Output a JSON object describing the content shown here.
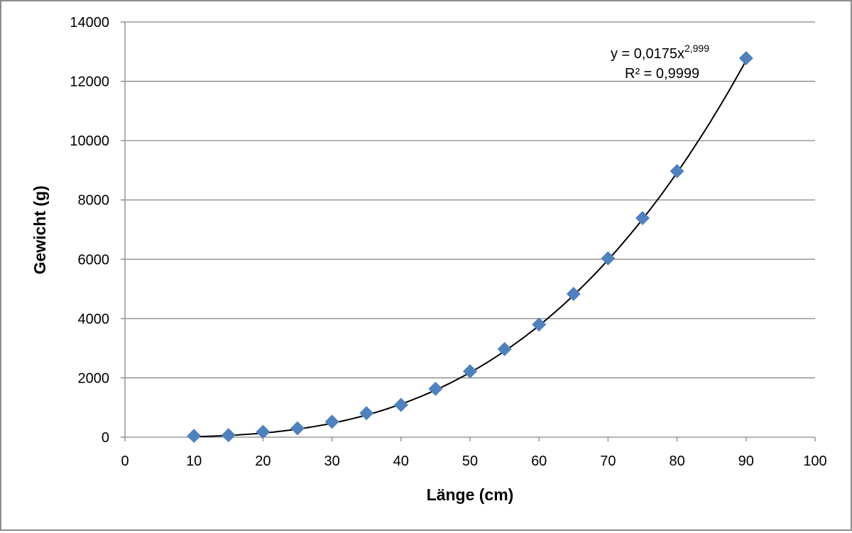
{
  "chart_data": {
    "type": "scatter",
    "title": "",
    "xlabel": "Länge (cm)",
    "ylabel": "Gewicht (g)",
    "xlim": [
      0,
      100
    ],
    "ylim": [
      0,
      14000
    ],
    "xticks": [
      0,
      10,
      20,
      30,
      40,
      50,
      60,
      70,
      80,
      90,
      100
    ],
    "yticks": [
      0,
      2000,
      4000,
      6000,
      8000,
      10000,
      12000,
      14000
    ],
    "grid": {
      "horizontal": true,
      "vertical": false
    },
    "legend": "none",
    "series": [
      {
        "marker": "diamond",
        "color": "#4f81bd",
        "x": [
          10,
          15,
          20,
          25,
          30,
          35,
          40,
          45,
          50,
          55,
          60,
          65,
          70,
          75,
          80,
          90
        ],
        "y": [
          45,
          70,
          180,
          300,
          520,
          810,
          1090,
          1630,
          2220,
          2970,
          3800,
          4830,
          6030,
          7390,
          8970,
          12780
        ]
      }
    ],
    "trendline": {
      "type": "power",
      "coefficient": 0.0175,
      "exponent": 2.999,
      "color": "#000000",
      "equation_label": {
        "base": "y = 0,0175x",
        "exponent": "2,999"
      },
      "r2_label": "R² = 0,9999"
    }
  }
}
